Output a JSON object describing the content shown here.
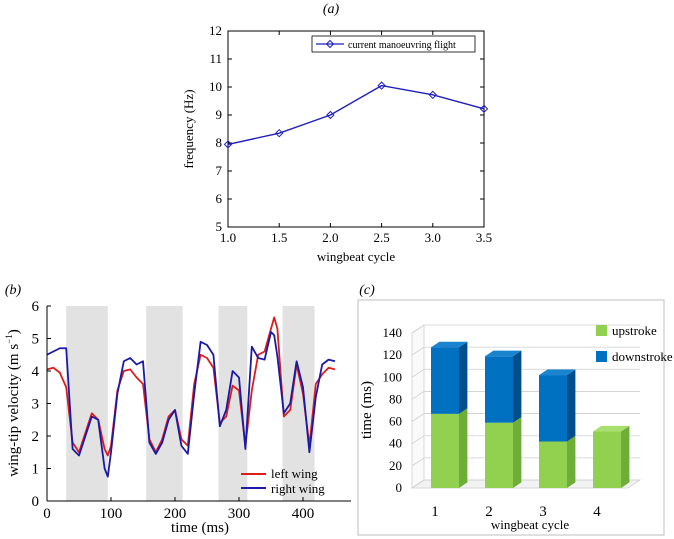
{
  "chart_data": [
    {
      "panel": "(a)",
      "type": "line",
      "x": [
        1.0,
        1.5,
        2.0,
        2.5,
        3.0,
        3.5
      ],
      "series": [
        {
          "name": "current manoeuvring flight",
          "color": "#1f1fbf",
          "values": [
            7.95,
            8.35,
            9.0,
            10.05,
            9.72,
            9.22
          ]
        }
      ],
      "xlabel": "wingbeat cycle",
      "ylabel": "frequency (Hz)",
      "xlim": [
        1.0,
        3.5
      ],
      "ylim": [
        5,
        12
      ],
      "xticks": [
        "1.0",
        "1.5",
        "2.0",
        "2.5",
        "3.0",
        "3.5"
      ],
      "yticks": [
        "5",
        "6",
        "7",
        "8",
        "9",
        "10",
        "11",
        "12"
      ],
      "legend": "top-right"
    },
    {
      "panel": "(b)",
      "type": "line",
      "xlabel": "time (ms)",
      "ylabel": "wing-tip velocity (m s",
      "ylabel_sup": "−1",
      "ylabel_close": ")",
      "xlim": [
        0,
        475
      ],
      "ylim": [
        0,
        6
      ],
      "xticks": [
        "0",
        "100",
        "200",
        "300",
        "400"
      ],
      "yticks": [
        "0",
        "1",
        "2",
        "3",
        "4",
        "5",
        "6"
      ],
      "shaded_intervals": [
        [
          30,
          95
        ],
        [
          155,
          212
        ],
        [
          268,
          313
        ],
        [
          368,
          418
        ]
      ],
      "shade_color": "#e2e2e2",
      "legend": "bottom-right",
      "series": [
        {
          "name": "left wing",
          "color": "#dd1c1c",
          "t": [
            0,
            10,
            20,
            30,
            40,
            50,
            60,
            70,
            80,
            90,
            95,
            100,
            110,
            120,
            130,
            140,
            150,
            160,
            170,
            180,
            190,
            200,
            210,
            220,
            230,
            240,
            250,
            260,
            270,
            280,
            290,
            300,
            310,
            320,
            330,
            340,
            350,
            355,
            360,
            370,
            380,
            390,
            400,
            410,
            420,
            430,
            440,
            450
          ],
          "v": [
            4.05,
            4.1,
            3.95,
            3.5,
            1.8,
            1.5,
            2.1,
            2.7,
            2.5,
            1.6,
            1.4,
            1.7,
            3.4,
            4.0,
            4.05,
            3.8,
            3.6,
            1.9,
            1.5,
            1.9,
            2.6,
            2.8,
            1.9,
            1.7,
            3.6,
            4.5,
            4.4,
            4.1,
            2.4,
            2.6,
            3.55,
            3.4,
            1.7,
            3.4,
            4.5,
            4.6,
            5.3,
            5.65,
            5.3,
            2.6,
            2.8,
            4.2,
            3.3,
            1.7,
            3.6,
            3.9,
            4.1,
            4.05
          ],
          "draw_until": 450
        },
        {
          "name": "right wing",
          "color": "#1a1aa8",
          "t": [
            0,
            10,
            20,
            30,
            40,
            50,
            60,
            70,
            80,
            90,
            95,
            100,
            110,
            120,
            130,
            140,
            150,
            160,
            170,
            180,
            190,
            200,
            210,
            220,
            230,
            240,
            250,
            260,
            270,
            280,
            290,
            300,
            310,
            320,
            330,
            340,
            350,
            355,
            360,
            370,
            380,
            390,
            400,
            410,
            420,
            430,
            440,
            450
          ],
          "v": [
            4.5,
            4.6,
            4.7,
            4.7,
            1.6,
            1.4,
            2.0,
            2.6,
            2.5,
            1.0,
            0.75,
            1.5,
            3.3,
            4.3,
            4.4,
            4.2,
            4.3,
            1.8,
            1.45,
            1.8,
            2.5,
            2.8,
            1.7,
            1.45,
            3.3,
            4.9,
            4.8,
            4.5,
            2.3,
            2.8,
            4.0,
            3.8,
            1.6,
            4.75,
            4.4,
            4.35,
            5.2,
            5.1,
            4.45,
            2.7,
            3.0,
            4.3,
            3.5,
            1.5,
            3.2,
            4.2,
            4.35,
            4.3
          ],
          "draw_until": 450
        }
      ]
    },
    {
      "panel": "(c)",
      "type": "bar",
      "categories": [
        "1",
        "2",
        "3",
        "4"
      ],
      "series": [
        {
          "name": "upstroke",
          "color": "#92d050",
          "values": [
            67,
            59,
            42,
            51
          ]
        },
        {
          "name": "downstroke",
          "color": "#0070c0",
          "values": [
            60,
            60,
            60,
            0
          ]
        }
      ],
      "xlabel": "wingbeat cycle",
      "ylabel": "time (ms)",
      "ylim": [
        0,
        140
      ],
      "yticks": [
        "0",
        "20",
        "40",
        "60",
        "80",
        "100",
        "120",
        "140"
      ],
      "legend": "top-right",
      "stacked": true
    }
  ]
}
